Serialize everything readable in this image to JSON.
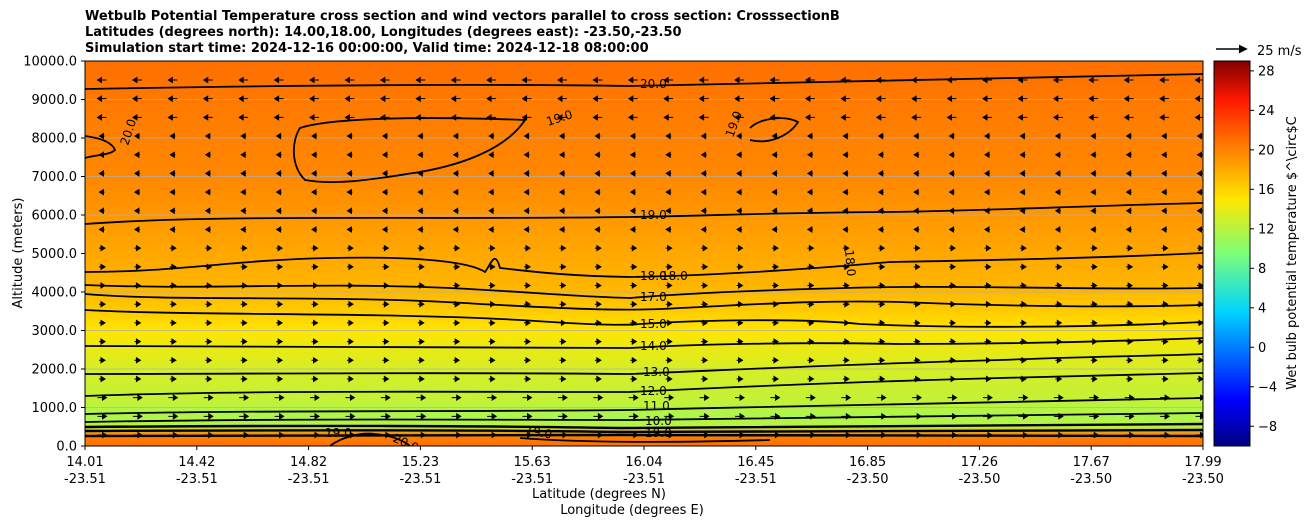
{
  "chart_data": {
    "type": "heatmap",
    "title_lines": [
      "Wetbulb Potential Temperature cross section and wind vectors parallel to cross section: CrosssectionB",
      "Latitudes (degrees north): 14.00,18.00, Longitudes (degrees east): -23.50,-23.50",
      "Simulation start time: 2024-12-16 00:00:00, Valid time: 2024-12-18 08:00:00"
    ],
    "ylabel": "Altitude (meters)",
    "xlabel_lat": "Latitude (degrees N)",
    "xlabel_lon": "Longitude (degrees E)",
    "ylim": [
      0,
      10000
    ],
    "xlim": [
      14.01,
      17.99
    ],
    "y_ticks": [
      "0.0",
      "1000.0",
      "2000.0",
      "3000.0",
      "4000.0",
      "5000.0",
      "6000.0",
      "7000.0",
      "8000.0",
      "9000.0",
      "10000.0"
    ],
    "x_ticks_lat": [
      "14.01",
      "14.42",
      "14.82",
      "15.23",
      "15.63",
      "16.04",
      "16.45",
      "16.85",
      "17.26",
      "17.67",
      "17.99"
    ],
    "x_ticks_lon": [
      "-23.51",
      "-23.51",
      "-23.51",
      "-23.51",
      "-23.51",
      "-23.51",
      "-23.51",
      "-23.50",
      "-23.50",
      "-23.50",
      "-23.50"
    ],
    "colorbar": {
      "label": "Wet bulb potential temperature $^\\circ$C",
      "range": [
        -10,
        29
      ],
      "ticks": [
        "28",
        "24",
        "20",
        "16",
        "12",
        "8",
        "4",
        "0",
        "−4",
        "−8"
      ]
    },
    "quiver_key": "25 m/s",
    "contour_labels": [
      "20.0",
      "19.0",
      "20.0",
      "19.0",
      "19.0",
      "18.0",
      "18.0",
      "18.0",
      "17.0",
      "15.0",
      "14.0",
      "13.0",
      "12.0",
      "11.0",
      "10.0",
      "19.0",
      "20.0",
      "19.0",
      "19.0"
    ],
    "field_altitude_m": [
      0,
      300,
      500,
      800,
      1200,
      1800,
      2500,
      3000,
      3500,
      4000,
      5000,
      6000,
      7000,
      8500,
      10000
    ],
    "field_temp_c": [
      21,
      20,
      12,
      11.5,
      12.5,
      13,
      14,
      15,
      16.3,
      17.3,
      18.2,
      19,
      19.8,
      20.3,
      21
    ]
  }
}
